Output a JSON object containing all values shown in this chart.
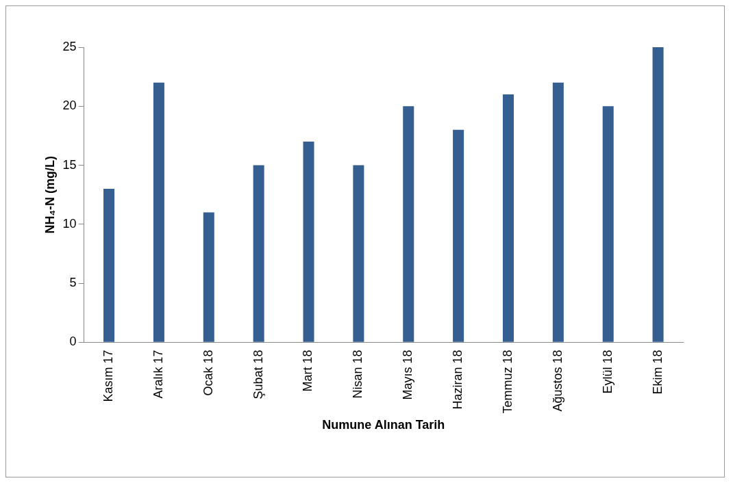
{
  "chart_data": {
    "type": "bar",
    "xlabel": "Numune Alınan Tarih",
    "ylabel": "NH₄-N (mg/L)",
    "categories": [
      "Kasım 17",
      "Aralık 17",
      "Ocak 18",
      "Şubat 18",
      "Mart 18",
      "Nisan 18",
      "Mayıs 18",
      "Haziran 18",
      "Temmuz 18",
      "Ağustos 18",
      "Eylül 18",
      "Ekim 18"
    ],
    "values": [
      13,
      22,
      11,
      15,
      17,
      15,
      20,
      18,
      21,
      22,
      20,
      25
    ],
    "color": "#365f91",
    "ylim": [
      0,
      25
    ],
    "yticks": [
      0,
      5,
      10,
      15,
      20,
      25
    ],
    "grid": false,
    "legend": false
  }
}
